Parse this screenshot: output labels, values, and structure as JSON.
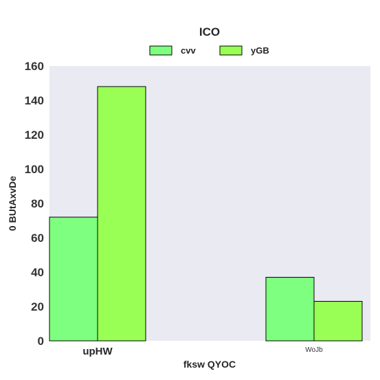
{
  "chart_data": {
    "type": "bar",
    "title": "ICO",
    "xlabel": "fksw QYOC",
    "ylabel": "0 BUtAxvDe",
    "categories": [
      "upHW",
      "WoJb"
    ],
    "series": [
      {
        "name": "cvv",
        "values": [
          72,
          37
        ],
        "color": "#7fff7f"
      },
      {
        "name": "yGB",
        "values": [
          148,
          23
        ],
        "color": "#99ff55"
      }
    ],
    "ylim": [
      0,
      160
    ],
    "yticks": [
      0,
      20,
      40,
      60,
      80,
      100,
      120,
      140,
      160
    ],
    "grid": false,
    "legend_position": "top-center",
    "background": "#eaeaf2"
  }
}
